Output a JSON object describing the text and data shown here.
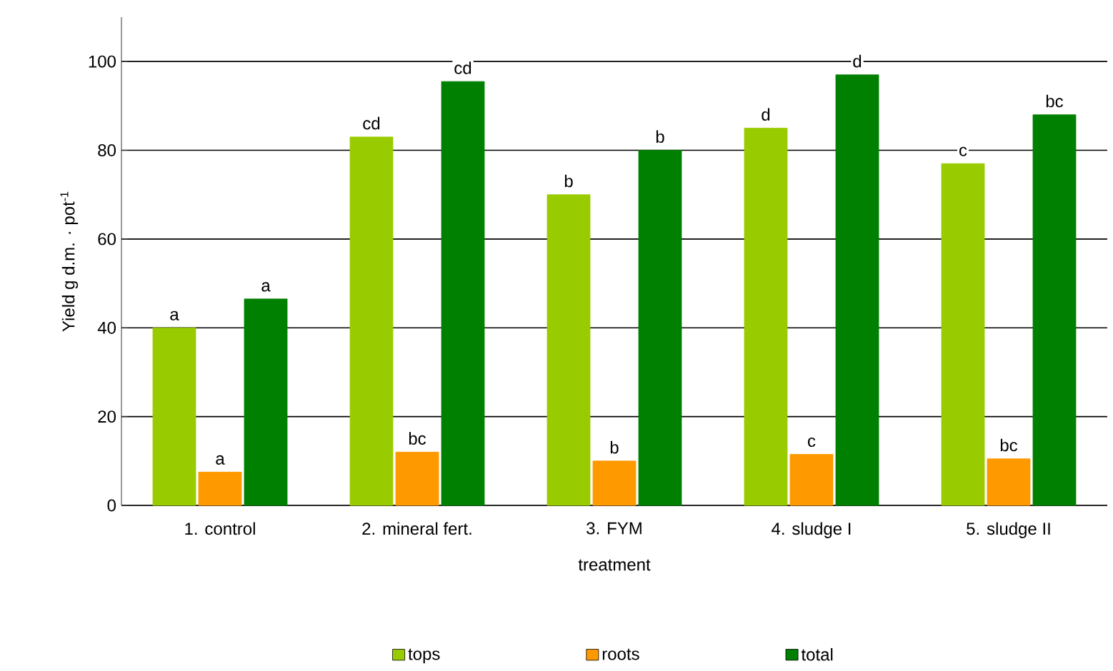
{
  "chart_data": {
    "type": "bar",
    "xlabel": "treatment",
    "ylabel": "Yield g d.m. · pot$^{-1}$",
    "categories": [
      "1. control",
      "2. mineral fert.",
      "3. FYM",
      "4. sludge I",
      "5. sludge II"
    ],
    "series": [
      {
        "name": "tops",
        "color": "#99cc00",
        "values": [
          40,
          83,
          70,
          85,
          77
        ],
        "value_labels": [
          "a",
          "cd",
          "b",
          "d",
          "c"
        ]
      },
      {
        "name": "roots",
        "color": "#ff9900",
        "values": [
          7.5,
          12,
          10,
          11.5,
          10.5
        ],
        "value_labels": [
          "a",
          "bc",
          "b",
          "c",
          "bc"
        ]
      },
      {
        "name": "total",
        "color": "#008000",
        "values": [
          46.5,
          95.5,
          80,
          97,
          88
        ],
        "value_labels": [
          "a",
          "cd",
          "b",
          "d",
          "bc"
        ]
      }
    ],
    "ylim": [
      0,
      110
    ],
    "yticks": [
      0,
      20,
      40,
      60,
      80,
      100
    ],
    "grid": "y",
    "legend": "bottom"
  }
}
